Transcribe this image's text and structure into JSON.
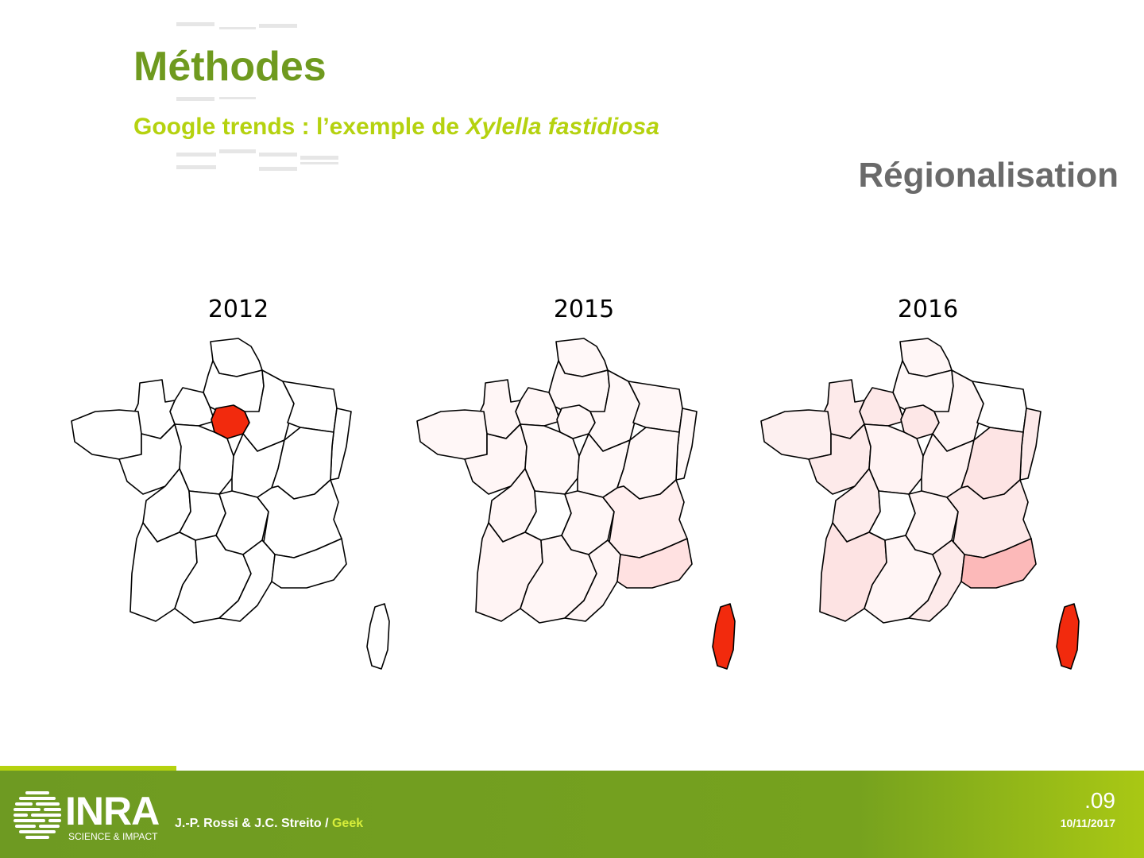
{
  "header": {
    "title": "Méthodes",
    "subtitle_prefix": "Google trends : l’exemple de ",
    "subtitle_species": "Xylella fastidiosa",
    "section": "Régionalisation"
  },
  "maps": [
    {
      "year": "2012",
      "colors": {
        "idf": "#f22a0d",
        "npc": "#ffffff",
        "pic": "#ffffff",
        "hno": "#ffffff",
        "bno": "#ffffff",
        "bre": "#ffffff",
        "pdl": "#ffffff",
        "cen": "#ffffff",
        "cha": "#ffffff",
        "lor": "#ffffff",
        "als": "#ffffff",
        "bou": "#ffffff",
        "fco": "#ffffff",
        "poi": "#ffffff",
        "lim": "#ffffff",
        "auv": "#ffffff",
        "rha": "#ffffff",
        "aqu": "#ffffff",
        "mip": "#ffffff",
        "lan": "#ffffff",
        "paca": "#ffffff",
        "cor": "#ffffff"
      }
    },
    {
      "year": "2015",
      "colors": {
        "idf": "#fff7f7",
        "npc": "#fff8f8",
        "pic": "#fff8f8",
        "hno": "#fff6f6",
        "bno": "#fff6f6",
        "bre": "#fff7f7",
        "pdl": "#fff6f6",
        "cen": "#fff8f8",
        "cha": "#fff8f8",
        "lor": "#fff7f7",
        "als": "#fff8f8",
        "bou": "#fff8f8",
        "fco": "#fff7f7",
        "poi": "#fff6f6",
        "lim": "#ffffff",
        "auv": "#fff7f7",
        "rha": "#ffefef",
        "aqu": "#fff4f4",
        "mip": "#fff6f6",
        "lan": "#fff5f5",
        "paca": "#ffe1e1",
        "cor": "#f22a0d"
      }
    },
    {
      "year": "2016",
      "colors": {
        "idf": "#fde7e7",
        "npc": "#fff6f6",
        "pic": "#fff8f8",
        "hno": "#fde8e8",
        "bno": "#fdeaea",
        "bre": "#fdf0f0",
        "pdl": "#fdeaea",
        "cen": "#fff3f3",
        "cha": "#fff5f5",
        "lor": "#ffffff",
        "als": "#fdeaea",
        "bou": "#fff3f3",
        "fco": "#fde4e4",
        "poi": "#fdecec",
        "lim": "#ffffff",
        "auv": "#fff4f4",
        "rha": "#fde9e9",
        "aqu": "#fde3e3",
        "mip": "#fff5f5",
        "lan": "#fdeaea",
        "paca": "#fcb9b9",
        "cor": "#f22a0d"
      }
    }
  ],
  "footer": {
    "logo": "INRA",
    "logo_sub": "SCIENCE & IMPACT",
    "authors": "J.-P. Rossi & J.C. Streito / ",
    "geek": "Geek",
    "page": ".09",
    "date": "10/11/2017"
  }
}
